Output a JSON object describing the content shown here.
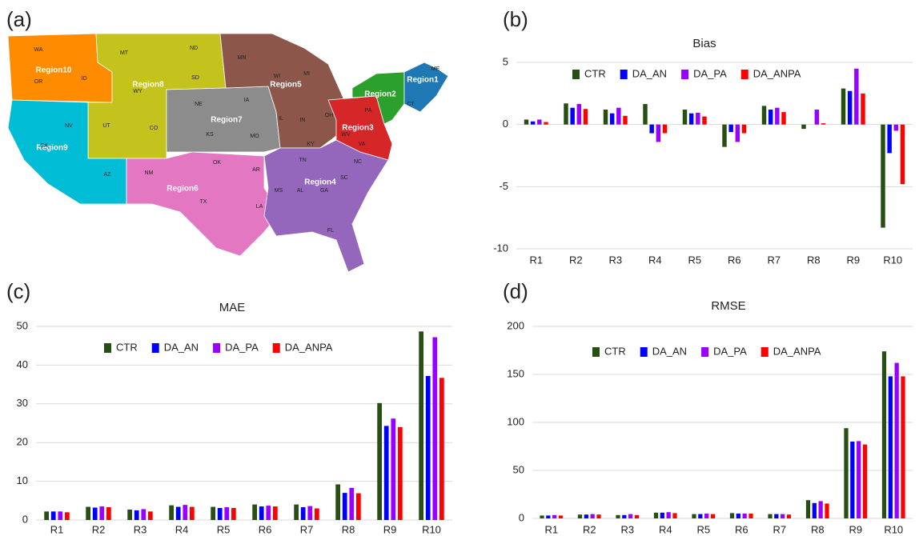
{
  "map": {
    "panel": "(a)",
    "regions": [
      "Region1",
      "Region2",
      "Region3",
      "Region4",
      "Region5",
      "Region6",
      "Region7",
      "Region8",
      "Region9",
      "Region10"
    ],
    "states": [
      "WA",
      "OR",
      "ID",
      "MT",
      "ND",
      "SD",
      "WY",
      "UT",
      "CO",
      "NV",
      "CA",
      "AZ",
      "NM",
      "OK",
      "TX",
      "NE",
      "KS",
      "IA",
      "MO",
      "AR",
      "LA",
      "MN",
      "WI",
      "MI",
      "IL",
      "IN",
      "OH",
      "KY",
      "TN",
      "MS",
      "AL",
      "GA",
      "SC",
      "NC",
      "FL",
      "PA",
      "WV",
      "VA",
      "ME",
      "CT"
    ]
  },
  "chart_data": [
    {
      "type": "bar",
      "panel": "(b)",
      "title": "Bias",
      "grid": true,
      "legend": "top",
      "categories": [
        "R1",
        "R2",
        "R3",
        "R4",
        "R5",
        "R6",
        "R7",
        "R8",
        "R9",
        "R10"
      ],
      "ylim": [
        -10,
        5
      ],
      "yticks": [
        -10,
        -5,
        0,
        5
      ],
      "series": [
        {
          "name": "CTR",
          "color": "#274e13",
          "values": [
            0.4,
            1.7,
            1.2,
            1.65,
            1.2,
            -1.8,
            1.5,
            -0.35,
            2.9,
            -8.3
          ]
        },
        {
          "name": "DA_AN",
          "color": "#0000ff",
          "values": [
            0.25,
            1.35,
            0.9,
            -0.7,
            0.9,
            -0.6,
            1.2,
            0,
            2.7,
            -2.3
          ]
        },
        {
          "name": "DA_PA",
          "color": "#9900ff",
          "values": [
            0.4,
            1.65,
            1.35,
            -1.4,
            0.95,
            -1.4,
            1.35,
            1.2,
            4.5,
            -0.5
          ]
        },
        {
          "name": "DA_ANPA",
          "color": "#ff0000",
          "values": [
            0.2,
            1.25,
            0.7,
            -0.7,
            0.65,
            -0.7,
            1.0,
            0.1,
            2.5,
            -4.8
          ]
        }
      ]
    },
    {
      "type": "bar",
      "panel": "(c)",
      "title": "MAE",
      "grid": true,
      "legend": "top",
      "categories": [
        "R1",
        "R2",
        "R3",
        "R4",
        "R5",
        "R6",
        "R7",
        "R8",
        "R9",
        "R10"
      ],
      "ylim": [
        0,
        50
      ],
      "yticks": [
        0,
        10,
        20,
        30,
        40,
        50
      ],
      "series": [
        {
          "name": "CTR",
          "color": "#274e13",
          "values": [
            2.2,
            3.4,
            2.7,
            3.8,
            3.4,
            4.0,
            4.0,
            9.2,
            30.2,
            48.7
          ]
        },
        {
          "name": "DA_AN",
          "color": "#0000ff",
          "values": [
            2.2,
            3.2,
            2.5,
            3.4,
            3.1,
            3.5,
            3.3,
            7.0,
            24.3,
            37.2
          ]
        },
        {
          "name": "DA_PA",
          "color": "#9900ff",
          "values": [
            2.2,
            3.5,
            2.8,
            3.9,
            3.3,
            3.7,
            3.6,
            8.3,
            26.2,
            47.2
          ]
        },
        {
          "name": "DA_ANPA",
          "color": "#ff0000",
          "values": [
            2.0,
            3.3,
            2.2,
            3.4,
            3.1,
            3.5,
            3.0,
            6.9,
            24.0,
            36.7
          ]
        }
      ]
    },
    {
      "type": "bar",
      "panel": "(d)",
      "title": "RMSE",
      "grid": true,
      "legend": "top",
      "categories": [
        "R1",
        "R2",
        "R3",
        "R4",
        "R5",
        "R6",
        "R7",
        "R8",
        "R9",
        "R10"
      ],
      "ylim": [
        0,
        200
      ],
      "yticks": [
        0,
        50,
        100,
        150,
        200
      ],
      "series": [
        {
          "name": "CTR",
          "color": "#274e13",
          "values": [
            3,
            4,
            3.5,
            6,
            4.5,
            5.5,
            4.5,
            19,
            94,
            174
          ]
        },
        {
          "name": "DA_AN",
          "color": "#0000ff",
          "values": [
            3,
            4,
            3.5,
            6,
            4.5,
            5,
            4.5,
            16,
            80,
            148
          ]
        },
        {
          "name": "DA_PA",
          "color": "#9900ff",
          "values": [
            3.5,
            4.5,
            4.5,
            6.5,
            5,
            5,
            4.5,
            18,
            80.5,
            162
          ]
        },
        {
          "name": "DA_ANPA",
          "color": "#ff0000",
          "values": [
            3,
            4,
            3.5,
            5.5,
            4.5,
            5,
            4,
            15.5,
            77,
            148
          ]
        }
      ]
    }
  ]
}
